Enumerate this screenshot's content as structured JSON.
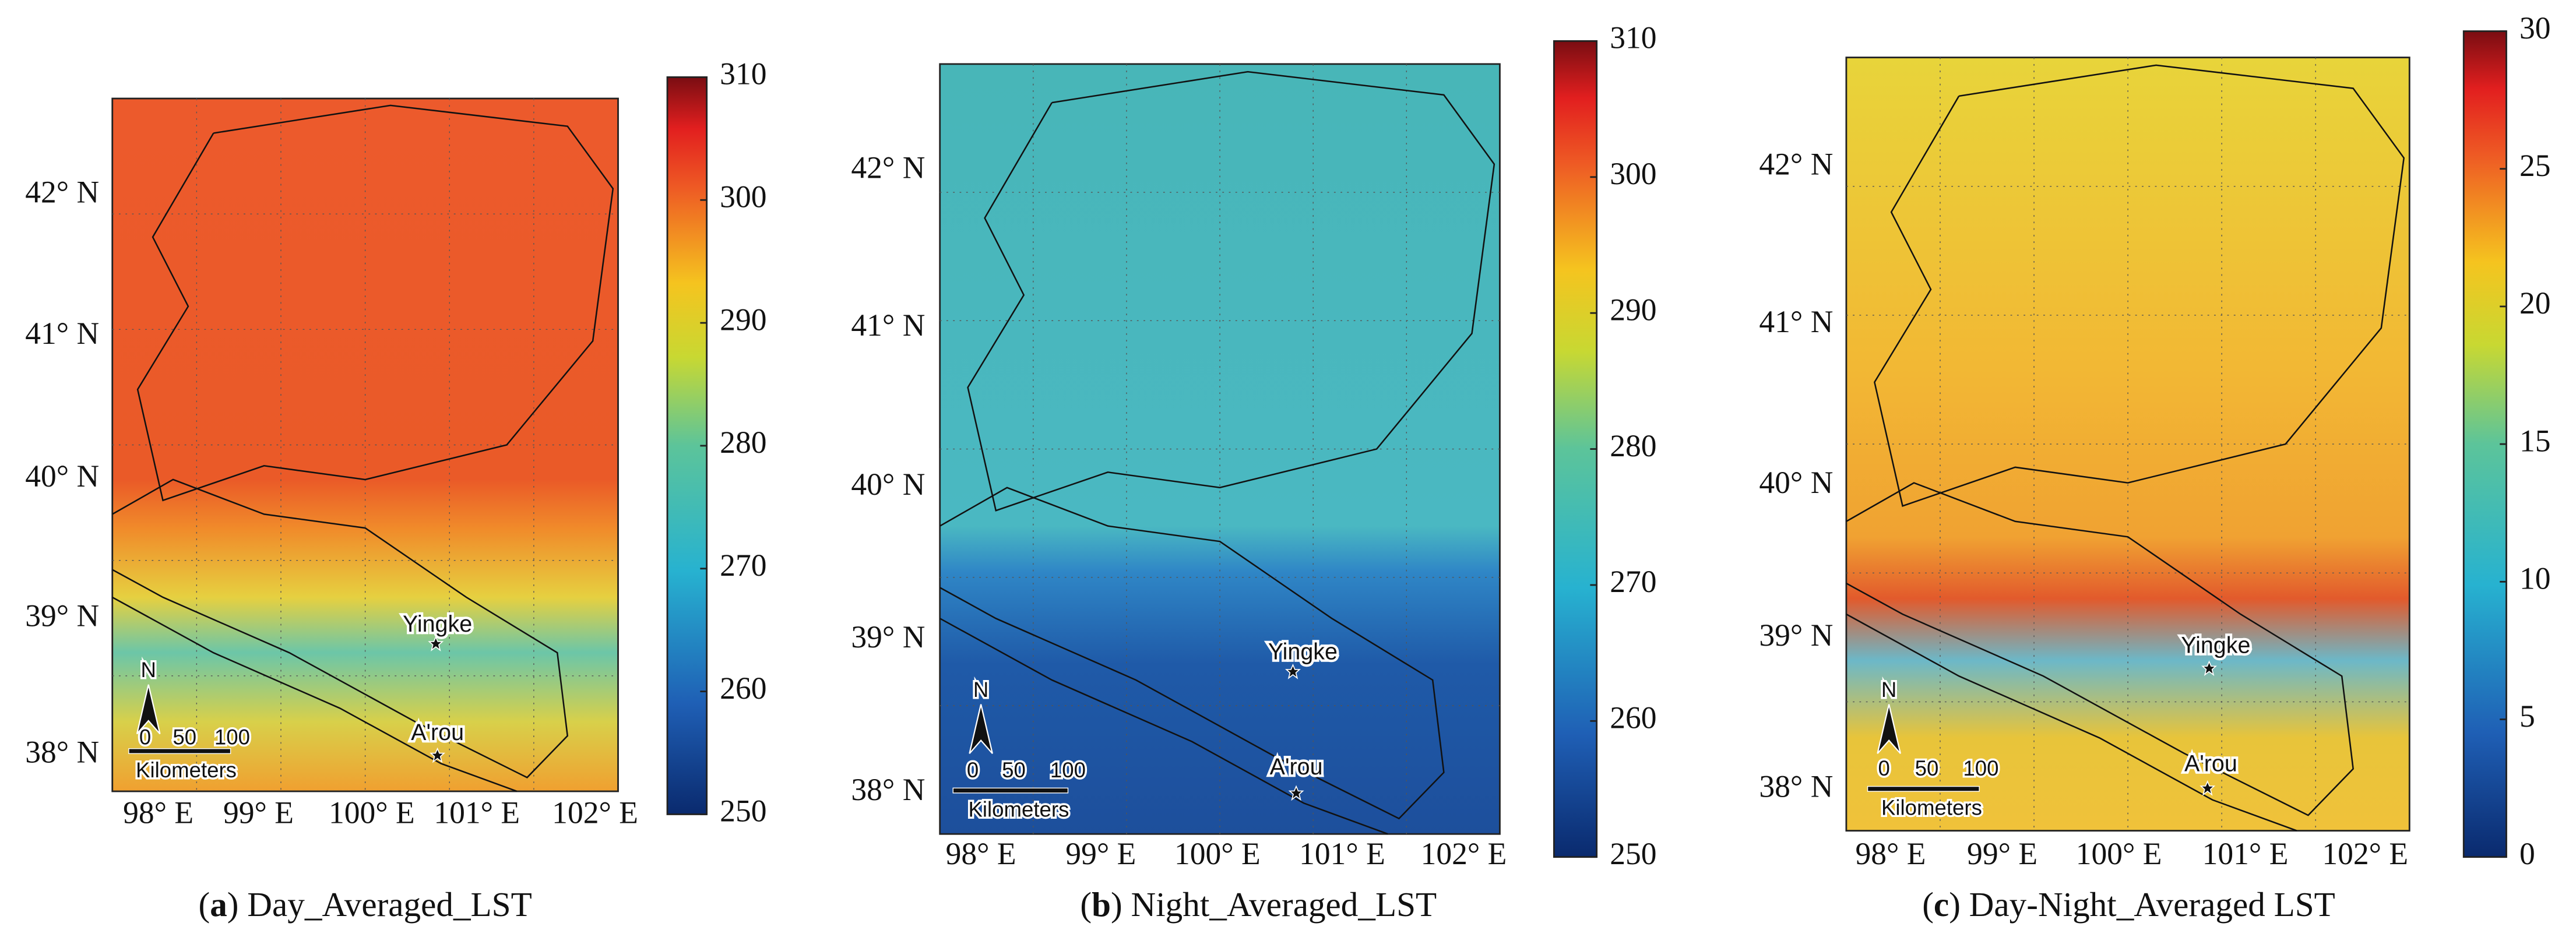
{
  "panels": [
    {
      "caption": [
        "(",
        "a",
        ") Day_Averaged_LST"
      ],
      "lat_ticks": [
        "42° N",
        "41° N",
        "40° N",
        "39° N",
        "38° N"
      ],
      "lon_ticks": [
        "98° E",
        "99° E",
        "100° E",
        "101° E",
        "102° E"
      ],
      "places": [
        "Yingke",
        "A'rou"
      ],
      "scale": {
        "north": "N",
        "labels": [
          "0",
          "50",
          "100"
        ],
        "unit": "Kilometers"
      },
      "colorbar": {
        "lim": [
          250,
          310
        ],
        "ticks": [
          250,
          260,
          270,
          280,
          290,
          300,
          310
        ]
      }
    },
    {
      "caption": [
        "(",
        "b",
        ") Night_Averaged_LST"
      ],
      "lat_ticks": [
        "42° N",
        "41° N",
        "40° N",
        "39° N",
        "38° N"
      ],
      "lon_ticks": [
        "98° E",
        "99° E",
        "100° E",
        "101° E",
        "102° E"
      ],
      "places": [
        "Yingke",
        "A'rou"
      ],
      "scale": {
        "north": "N",
        "labels": [
          "0",
          "50",
          "100"
        ],
        "unit": "Kilometers"
      },
      "colorbar": {
        "lim": [
          250,
          310
        ],
        "ticks": [
          250,
          260,
          270,
          280,
          290,
          300,
          310
        ]
      }
    },
    {
      "caption": [
        "(",
        "c",
        ") Day-Night_Averaged LST"
      ],
      "lat_ticks": [
        "42° N",
        "41° N",
        "40° N",
        "39° N",
        "38° N"
      ],
      "lon_ticks": [
        "98° E",
        "99° E",
        "100° E",
        "101° E",
        "102° E"
      ],
      "places": [
        "Yingke",
        "A'rou"
      ],
      "scale": {
        "north": "N",
        "labels": [
          "0",
          "50",
          "100"
        ],
        "unit": "Kilometers"
      },
      "colorbar": {
        "lim": [
          0,
          30
        ],
        "ticks": [
          0,
          5,
          10,
          15,
          20,
          25,
          30
        ]
      }
    }
  ]
}
